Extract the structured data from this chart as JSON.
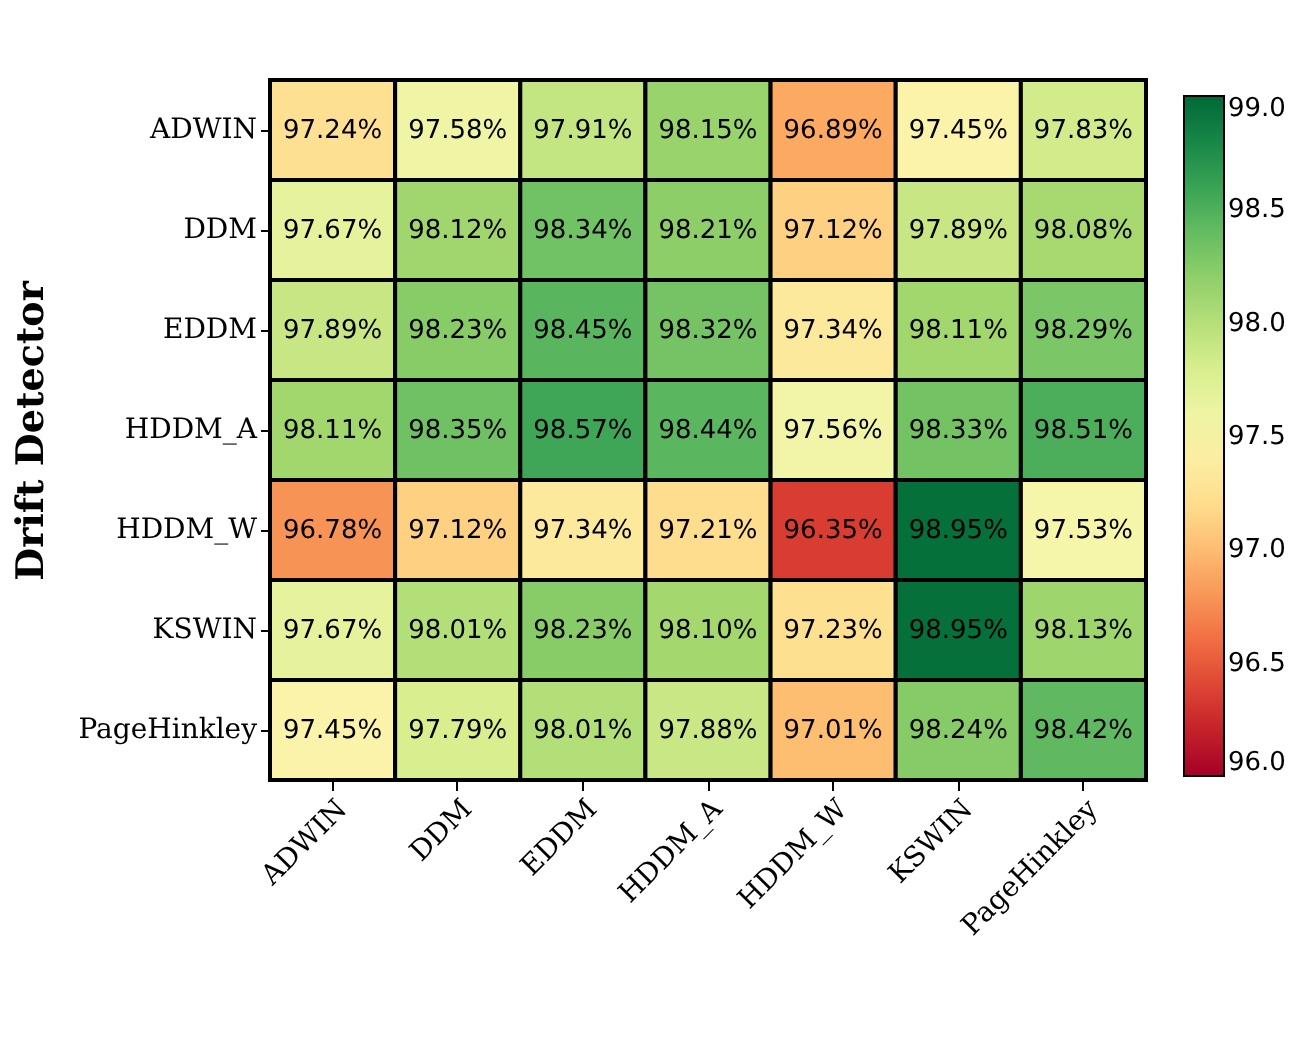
{
  "chart_data": {
    "type": "heatmap",
    "ylabel": "Drift Detector",
    "categories": [
      "ADWIN",
      "DDM",
      "EDDM",
      "HDDM_A",
      "HDDM_W",
      "KSWIN",
      "PageHinkley"
    ],
    "y_categories": [
      "ADWIN",
      "DDM",
      "EDDM",
      "HDDM_A",
      "HDDM_W",
      "KSWIN",
      "PageHinkley"
    ],
    "cells": [
      [
        97.24,
        97.58,
        97.91,
        98.15,
        96.89,
        97.45,
        97.83
      ],
      [
        97.67,
        98.12,
        98.34,
        98.21,
        97.12,
        97.89,
        98.08
      ],
      [
        97.89,
        98.23,
        98.45,
        98.32,
        97.34,
        98.11,
        98.29
      ],
      [
        98.11,
        98.35,
        98.57,
        98.44,
        97.56,
        98.33,
        98.51
      ],
      [
        96.78,
        97.12,
        97.34,
        97.21,
        96.35,
        98.95,
        97.53
      ],
      [
        97.67,
        98.01,
        98.23,
        98.1,
        97.23,
        98.95,
        98.13
      ],
      [
        97.45,
        97.79,
        98.01,
        97.88,
        97.01,
        98.24,
        98.42
      ]
    ],
    "cell_labels": [
      [
        "97.24%",
        "97.58%",
        "97.91%",
        "98.15%",
        "96.89%",
        "97.45%",
        "97.83%"
      ],
      [
        "97.67%",
        "98.12%",
        "98.34%",
        "98.21%",
        "97.12%",
        "97.89%",
        "98.08%"
      ],
      [
        "97.89%",
        "98.23%",
        "98.45%",
        "98.32%",
        "97.34%",
        "98.11%",
        "98.29%"
      ],
      [
        "98.11%",
        "98.35%",
        "98.57%",
        "98.44%",
        "97.56%",
        "98.33%",
        "98.51%"
      ],
      [
        "96.78%",
        "97.12%",
        "97.34%",
        "97.21%",
        "96.35%",
        "98.95%",
        "97.53%"
      ],
      [
        "97.67%",
        "98.01%",
        "98.23%",
        "98.10%",
        "97.23%",
        "98.95%",
        "98.13%"
      ],
      [
        "97.45%",
        "97.79%",
        "98.01%",
        "97.88%",
        "97.01%",
        "98.24%",
        "98.42%"
      ]
    ],
    "clim": [
      96,
      99
    ],
    "cticks": [
      {
        "value": 96,
        "label": "96.0"
      },
      {
        "value": 96.5,
        "label": "96.5"
      },
      {
        "value": 97,
        "label": "97.0"
      },
      {
        "value": 97.5,
        "label": "97.5"
      },
      {
        "value": 98,
        "label": "98.0"
      },
      {
        "value": 98.5,
        "label": "98.5"
      },
      {
        "value": 99,
        "label": "99.0"
      }
    ]
  }
}
